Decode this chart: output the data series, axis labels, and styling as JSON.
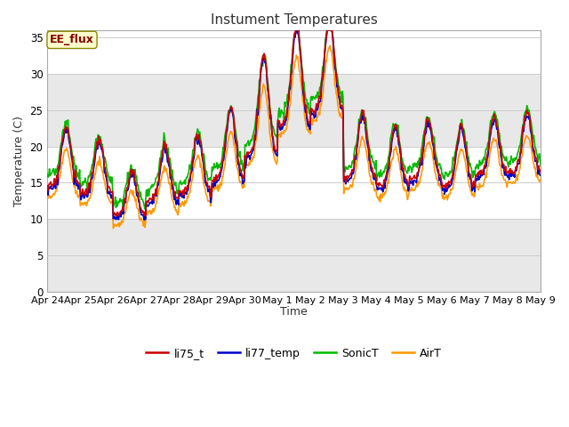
{
  "title": "Instument Temperatures",
  "ylabel": "Temperature (C)",
  "xlabel": "Time",
  "annotation": "EE_flux",
  "yticks": [
    0,
    5,
    10,
    15,
    20,
    25,
    30,
    35
  ],
  "ylim": [
    0,
    36
  ],
  "series": {
    "li75_t": {
      "color": "#cc0000",
      "lw": 1.2
    },
    "li77_temp": {
      "color": "#0000cc",
      "lw": 1.2
    },
    "SonicT": {
      "color": "#00bb00",
      "lw": 1.2
    },
    "AirT": {
      "color": "#ff9900",
      "lw": 1.2
    }
  },
  "tick_labels": [
    "Apr 24",
    "Apr 25",
    "Apr 26",
    "Apr 27",
    "Apr 28",
    "Apr 29",
    "Apr 30",
    "May 1",
    "May 2",
    "May 3",
    "May 4",
    "May 5",
    "May 6",
    "May 7",
    "May 8",
    "May 9"
  ],
  "n_days": 15,
  "n_pts_per_day": 48,
  "day_bases": [
    14.5,
    13.5,
    10.5,
    12.5,
    13.5,
    15.5,
    19.0,
    23.0,
    25.0,
    15.5,
    14.5,
    15.5,
    14.5,
    16.0,
    16.5
  ],
  "day_amps": [
    5.5,
    5.0,
    4.0,
    5.0,
    5.5,
    6.5,
    9.0,
    9.0,
    8.5,
    6.0,
    5.5,
    5.5,
    5.5,
    5.5,
    5.5
  ],
  "seed": 17
}
